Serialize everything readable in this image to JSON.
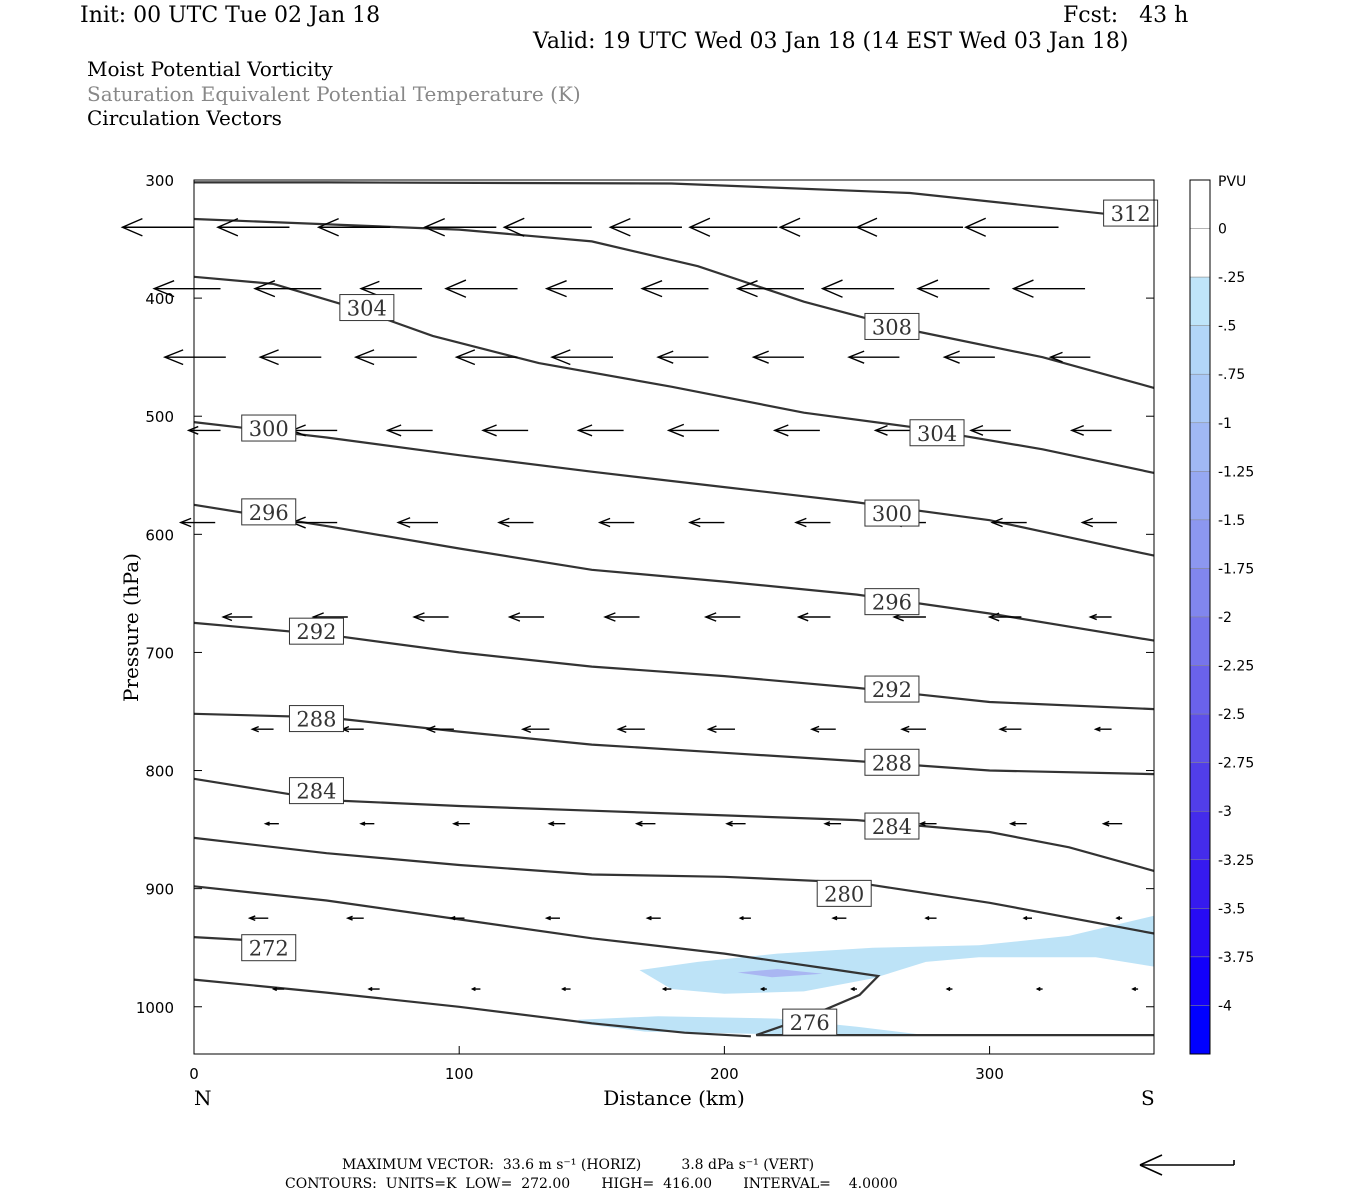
{
  "header": {
    "init": "Init: 00 UTC Tue 02 Jan 18",
    "fcst": "Fcst:   43 h",
    "valid": "Valid: 19 UTC Wed 03 Jan 18 (14 EST Wed 03 Jan 18)",
    "field1": "Moist Potential Vorticity",
    "field2": "Saturation Equivalent Potential Temperature (K)",
    "field3": "Circulation Vectors"
  },
  "footer": {
    "max_vector": "MAXIMUM VECTOR:  33.6 m s⁻¹ (HORIZ)         3.8 dPa s⁻¹ (VERT)",
    "contours": "CONTOURS:  UNITS=K  LOW=  272.00       HIGH=  416.00       INTERVAL=    4.0000"
  },
  "colors": {
    "contour": "#333333",
    "shade_light": "#bde3f7",
    "shade_mid": "#a9b6f2"
  },
  "chart_data": {
    "type": "cross-section",
    "xlabel": "Distance (km)",
    "ylabel": "Pressure (hPa)",
    "x_end_left": "N",
    "x_end_right": "S",
    "xlim": [
      0,
      362
    ],
    "ylim": [
      1040,
      300
    ],
    "xticks": [
      "0",
      "100",
      "200",
      "300"
    ],
    "yticks": [
      "300",
      "400",
      "500",
      "600",
      "700",
      "800",
      "900",
      "1000"
    ],
    "colorbar": {
      "title": "PVU",
      "labels": [
        "0",
        "-.25",
        "-.5",
        "-.75",
        "-1",
        "-1.25",
        "-1.5",
        "-1.75",
        "-2",
        "-2.25",
        "-2.5",
        "-2.75",
        "-3",
        "-3.25",
        "-3.5",
        "-3.75",
        "-4"
      ],
      "colors": [
        "#ffffff",
        "#ffffff",
        "#bfe5fa",
        "#b2d6f8",
        "#a9c8f6",
        "#a0b8f4",
        "#96a8f2",
        "#8c97f0",
        "#8186ee",
        "#7674ec",
        "#6a62eb",
        "#5e50e9",
        "#513eea",
        "#442ceb",
        "#361aef",
        "#270bf4",
        "#1200fb",
        "#0000ff"
      ]
    },
    "contours": [
      {
        "label": "312",
        "points": [
          [
            0,
            302
          ],
          [
            50,
            302
          ],
          [
            180,
            303
          ],
          [
            270,
            311
          ],
          [
            362,
            333
          ]
        ]
      },
      {
        "label": "308",
        "points": [
          [
            0,
            333
          ],
          [
            100,
            342
          ],
          [
            150,
            352
          ],
          [
            190,
            373
          ],
          [
            230,
            403
          ],
          [
            270,
            427
          ],
          [
            320,
            450
          ],
          [
            362,
            476
          ]
        ]
      },
      {
        "label": "304",
        "points": [
          [
            0,
            382
          ],
          [
            30,
            388
          ],
          [
            60,
            408
          ],
          [
            90,
            432
          ],
          [
            130,
            455
          ],
          [
            180,
            475
          ],
          [
            230,
            497
          ],
          [
            270,
            509
          ],
          [
            320,
            528
          ],
          [
            362,
            548
          ]
        ]
      },
      {
        "label": "300",
        "points": [
          [
            0,
            505
          ],
          [
            50,
            518
          ],
          [
            100,
            533
          ],
          [
            150,
            547
          ],
          [
            200,
            560
          ],
          [
            250,
            573
          ],
          [
            300,
            588
          ],
          [
            362,
            618
          ]
        ]
      },
      {
        "label": "296",
        "points": [
          [
            0,
            575
          ],
          [
            50,
            593
          ],
          [
            100,
            612
          ],
          [
            150,
            630
          ],
          [
            200,
            640
          ],
          [
            250,
            651
          ],
          [
            300,
            667
          ],
          [
            362,
            690
          ]
        ]
      },
      {
        "label": "292",
        "points": [
          [
            0,
            675
          ],
          [
            50,
            685
          ],
          [
            100,
            700
          ],
          [
            150,
            712
          ],
          [
            200,
            720
          ],
          [
            250,
            730
          ],
          [
            300,
            742
          ],
          [
            362,
            748
          ]
        ]
      },
      {
        "label": "288",
        "points": [
          [
            0,
            752
          ],
          [
            50,
            755
          ],
          [
            100,
            767
          ],
          [
            150,
            778
          ],
          [
            200,
            785
          ],
          [
            250,
            792
          ],
          [
            300,
            800
          ],
          [
            362,
            803
          ]
        ]
      },
      {
        "label": "284",
        "points": [
          [
            0,
            807
          ],
          [
            50,
            825
          ],
          [
            100,
            830
          ],
          [
            150,
            834
          ],
          [
            200,
            838
          ],
          [
            250,
            842
          ],
          [
            300,
            852
          ],
          [
            330,
            865
          ],
          [
            362,
            885
          ]
        ]
      },
      {
        "label": "280",
        "points": [
          [
            0,
            857
          ],
          [
            50,
            870
          ],
          [
            100,
            880
          ],
          [
            150,
            888
          ],
          [
            200,
            890
          ],
          [
            250,
            895
          ],
          [
            300,
            912
          ],
          [
            362,
            938
          ]
        ]
      },
      {
        "label": "276",
        "points": [
          [
            0,
            898
          ],
          [
            50,
            910
          ],
          [
            100,
            926
          ],
          [
            150,
            942
          ],
          [
            200,
            955
          ],
          [
            240,
            968
          ],
          [
            258,
            974
          ],
          [
            251,
            990
          ],
          [
            230,
            1010
          ],
          [
            212,
            1024
          ],
          [
            362,
            1024
          ]
        ]
      },
      {
        "label": "272",
        "points": [
          [
            0,
            941
          ],
          [
            32,
            945
          ]
        ]
      },
      {
        "label": "",
        "points": [
          [
            0,
            977
          ],
          [
            50,
            988
          ],
          [
            100,
            1000
          ],
          [
            150,
            1014
          ],
          [
            185,
            1022
          ],
          [
            210,
            1025
          ]
        ]
      }
    ],
    "shaded_regions": [
      {
        "pvu": "-0.25 to -0.5",
        "points": [
          [
            168,
            969
          ],
          [
            180,
            985
          ],
          [
            200,
            989
          ],
          [
            230,
            987
          ],
          [
            256,
            976
          ],
          [
            276,
            962
          ],
          [
            296,
            958
          ],
          [
            340,
            958
          ],
          [
            362,
            966
          ],
          [
            362,
            923
          ],
          [
            330,
            940
          ],
          [
            296,
            948
          ],
          [
            256,
            950
          ],
          [
            220,
            955
          ],
          [
            190,
            962
          ]
        ]
      },
      {
        "pvu": "-0.25 to -0.5",
        "points": [
          [
            145,
            1011
          ],
          [
            175,
            1008
          ],
          [
            220,
            1010
          ],
          [
            250,
            1017
          ],
          [
            276,
            1024
          ],
          [
            235,
            1024
          ],
          [
            170,
            1021
          ],
          [
            145,
            1014
          ]
        ]
      },
      {
        "pvu": "-0.5 to -0.75",
        "points": [
          [
            205,
            971
          ],
          [
            220,
            968
          ],
          [
            237,
            972
          ],
          [
            218,
            975
          ]
        ]
      }
    ],
    "vectors": [
      {
        "pressure": 340,
        "row": [
          [
            0,
            -27
          ],
          [
            36,
            -27
          ],
          [
            74,
            -27
          ],
          [
            114,
            -27
          ],
          [
            150,
            -33
          ],
          [
            184,
            -27
          ],
          [
            220,
            -33
          ],
          [
            254,
            -33
          ],
          [
            290,
            -40
          ],
          [
            326,
            -35
          ]
        ]
      },
      {
        "pressure": 392,
        "row": [
          [
            10,
            -25
          ],
          [
            48,
            -25
          ],
          [
            86,
            -23
          ],
          [
            122,
            -27
          ],
          [
            158,
            -25
          ],
          [
            194,
            -25
          ],
          [
            230,
            -25
          ],
          [
            264,
            -27
          ],
          [
            300,
            -27
          ],
          [
            336,
            -27
          ]
        ]
      },
      {
        "pressure": 450,
        "row": [
          [
            12,
            -23
          ],
          [
            48,
            -23
          ],
          [
            84,
            -23
          ],
          [
            122,
            -23
          ],
          [
            158,
            -23
          ],
          [
            194,
            -19
          ],
          [
            230,
            -19
          ],
          [
            266,
            -19
          ],
          [
            302,
            -19
          ],
          [
            338,
            -15
          ]
        ]
      },
      {
        "pressure": 512,
        "row": [
          [
            10,
            -12
          ],
          [
            54,
            -17
          ],
          [
            90,
            -17
          ],
          [
            126,
            -17
          ],
          [
            162,
            -17
          ],
          [
            198,
            -19
          ],
          [
            236,
            -17
          ],
          [
            272,
            -15
          ],
          [
            308,
            -15
          ],
          [
            346,
            -15
          ]
        ]
      },
      {
        "pressure": 590,
        "row": [
          [
            8,
            -13
          ],
          [
            54,
            -17
          ],
          [
            92,
            -15
          ],
          [
            128,
            -13
          ],
          [
            166,
            -13
          ],
          [
            200,
            -13
          ],
          [
            240,
            -13
          ],
          [
            276,
            -13
          ],
          [
            314,
            -13
          ],
          [
            348,
            -13
          ]
        ]
      },
      {
        "pressure": 670,
        "row": [
          [
            22,
            -11
          ],
          [
            58,
            -13
          ],
          [
            96,
            -13
          ],
          [
            132,
            -13
          ],
          [
            168,
            -13
          ],
          [
            206,
            -13
          ],
          [
            240,
            -12
          ],
          [
            276,
            -12
          ],
          [
            312,
            -12
          ],
          [
            346,
            -8
          ]
        ]
      },
      {
        "pressure": 765,
        "row": [
          [
            30,
            -8
          ],
          [
            64,
            -8
          ],
          [
            98,
            -10
          ],
          [
            134,
            -10
          ],
          [
            170,
            -10
          ],
          [
            204,
            -10
          ],
          [
            242,
            -9
          ],
          [
            276,
            -9
          ],
          [
            312,
            -8
          ],
          [
            346,
            -6
          ]
        ]
      },
      {
        "pressure": 845,
        "row": [
          [
            32,
            -5
          ],
          [
            68,
            -5
          ],
          [
            104,
            -6
          ],
          [
            140,
            -6
          ],
          [
            174,
            -7
          ],
          [
            208,
            -7
          ],
          [
            244,
            -6
          ],
          [
            280,
            -6
          ],
          [
            314,
            -6
          ],
          [
            350,
            -7
          ]
        ]
      },
      {
        "pressure": 925,
        "row": [
          [
            28,
            -7
          ],
          [
            64,
            -6
          ],
          [
            102,
            -5
          ],
          [
            138,
            -5
          ],
          [
            176,
            -5
          ],
          [
            210,
            -4
          ],
          [
            246,
            -5
          ],
          [
            280,
            -4
          ],
          [
            316,
            -3
          ],
          [
            350,
            -2
          ]
        ]
      },
      {
        "pressure": 985,
        "row": [
          [
            34,
            -4
          ],
          [
            70,
            -4
          ],
          [
            108,
            -3
          ],
          [
            142,
            -3
          ],
          [
            180,
            -3
          ],
          [
            216,
            -2
          ],
          [
            250,
            -2
          ],
          [
            286,
            -2
          ],
          [
            320,
            -2
          ],
          [
            356,
            -2
          ]
        ]
      }
    ],
    "label_boxes": [
      {
        "text": "312",
        "x": 343,
        "p": 328
      },
      {
        "text": "304",
        "x": 55,
        "p": 408
      },
      {
        "text": "308",
        "x": 253,
        "p": 424
      },
      {
        "text": "300",
        "x": 18,
        "p": 510
      },
      {
        "text": "304",
        "x": 270,
        "p": 514
      },
      {
        "text": "296",
        "x": 18,
        "p": 581
      },
      {
        "text": "300",
        "x": 253,
        "p": 582
      },
      {
        "text": "296",
        "x": 253,
        "p": 657
      },
      {
        "text": "292",
        "x": 36,
        "p": 682
      },
      {
        "text": "292",
        "x": 253,
        "p": 731
      },
      {
        "text": "288",
        "x": 36,
        "p": 756
      },
      {
        "text": "288",
        "x": 253,
        "p": 793
      },
      {
        "text": "284",
        "x": 36,
        "p": 817
      },
      {
        "text": "284",
        "x": 253,
        "p": 847
      },
      {
        "text": "280",
        "x": 235,
        "p": 904
      },
      {
        "text": "272",
        "x": 18,
        "p": 950
      },
      {
        "text": "276",
        "x": 222,
        "p": 1013
      }
    ]
  }
}
